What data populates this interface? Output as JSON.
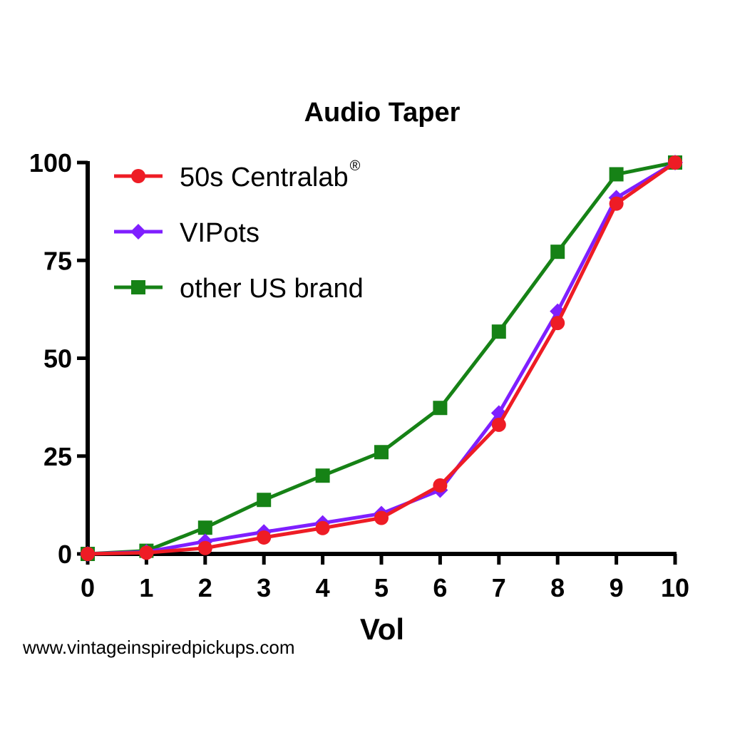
{
  "chart_data": {
    "type": "line",
    "title": "Audio Taper",
    "xlabel": "Vol",
    "ylabel": "",
    "xlim": [
      0,
      10
    ],
    "ylim": [
      0,
      100
    ],
    "x_ticks": [
      "0",
      "1",
      "2",
      "3",
      "4",
      "5",
      "6",
      "7",
      "8",
      "9",
      "10"
    ],
    "y_ticks": [
      "0",
      "25",
      "50",
      "75",
      "100"
    ],
    "grid": false,
    "legend_position": "top-left",
    "x": [
      0,
      1,
      2,
      3,
      4,
      5,
      6,
      7,
      8,
      9,
      10
    ],
    "series": [
      {
        "name": "50s Centralab",
        "name_superscript": "®",
        "color": "#ee1c25",
        "marker": "circle",
        "values": [
          0,
          0.3,
          1.5,
          4.2,
          6.6,
          9.2,
          17.5,
          33,
          59,
          89.5,
          100
        ]
      },
      {
        "name": "VIPots",
        "color": "#7f1fff",
        "marker": "diamond",
        "values": [
          0,
          0.5,
          3.2,
          5.6,
          7.9,
          10.3,
          16.3,
          36,
          62,
          91,
          100
        ]
      },
      {
        "name": "other US brand",
        "color": "#168216",
        "marker": "square",
        "values": [
          0,
          0.8,
          6.7,
          13.8,
          20,
          26,
          37.3,
          56.8,
          77.2,
          97,
          100
        ]
      }
    ]
  },
  "footer": {
    "text": "www.vintageinspiredpickups.com"
  }
}
